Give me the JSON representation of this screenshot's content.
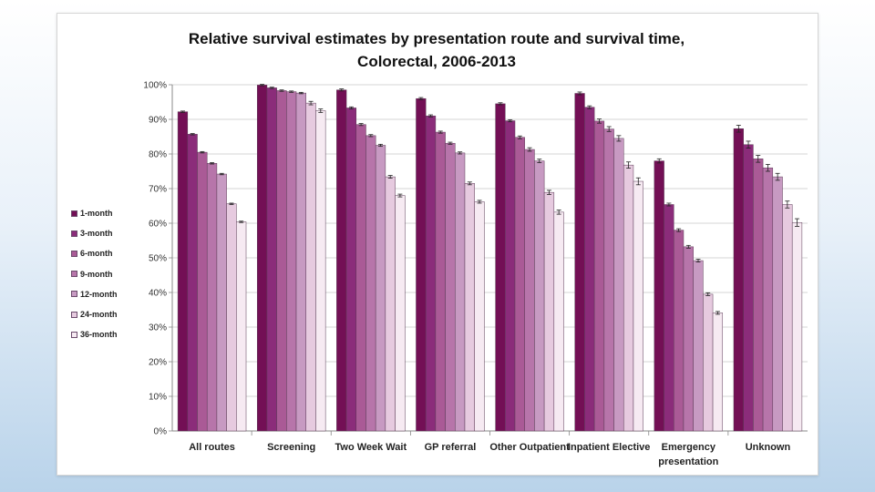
{
  "chart_data": {
    "type": "bar",
    "title": "Relative survival estimates by presentation route and survival time,",
    "subtitle": "Colorectal, 2006-2013",
    "xlabel": "",
    "ylabel": "",
    "ylim": [
      0,
      100
    ],
    "yticks": [
      "0%",
      "10%",
      "20%",
      "30%",
      "40%",
      "50%",
      "60%",
      "70%",
      "80%",
      "90%",
      "100%"
    ],
    "grid": true,
    "error_bars": true,
    "legend_position": "left",
    "categories": [
      "All routes",
      "Screening",
      "Two Week Wait",
      "GP referral",
      "Other Outpatient",
      "Inpatient Elective",
      "Emergency presentation",
      "Unknown"
    ],
    "series": [
      {
        "name": "1-month",
        "color": "#730f55",
        "values": [
          92.2,
          99.9,
          98.5,
          96.0,
          94.5,
          97.5,
          78.0,
          87.3
        ]
      },
      {
        "name": "3-month",
        "color": "#8b2c7a",
        "values": [
          85.7,
          99.1,
          93.3,
          91.0,
          89.6,
          93.5,
          65.4,
          82.7
        ]
      },
      {
        "name": "6-month",
        "color": "#aa5a96",
        "values": [
          80.5,
          98.3,
          88.5,
          86.3,
          84.8,
          89.5,
          58.0,
          78.6
        ]
      },
      {
        "name": "9-month",
        "color": "#b775aa",
        "values": [
          77.3,
          98.0,
          85.3,
          83.1,
          81.3,
          87.2,
          53.2,
          76.0
        ]
      },
      {
        "name": "12-month",
        "color": "#c79ac2",
        "values": [
          74.2,
          97.6,
          82.5,
          80.3,
          78.0,
          84.5,
          49.2,
          73.4
        ]
      },
      {
        "name": "24-month",
        "color": "#e6cadf",
        "values": [
          65.6,
          94.7,
          73.4,
          71.5,
          68.9,
          76.8,
          39.5,
          65.4
        ]
      },
      {
        "name": "36-month",
        "color": "#f6eaf2",
        "values": [
          60.4,
          92.5,
          68.0,
          66.2,
          63.2,
          72.1,
          34.1,
          60.2
        ]
      }
    ],
    "error_margins": [
      [
        0.2,
        0.2,
        0.3,
        0.3,
        0.3,
        0.4,
        0.6,
        1.0
      ],
      [
        0.2,
        0.2,
        0.3,
        0.3,
        0.3,
        0.4,
        0.4,
        1.0
      ],
      [
        0.2,
        0.2,
        0.3,
        0.3,
        0.4,
        0.6,
        0.4,
        1.0
      ],
      [
        0.2,
        0.2,
        0.3,
        0.3,
        0.5,
        0.7,
        0.4,
        1.0
      ],
      [
        0.2,
        0.2,
        0.3,
        0.3,
        0.5,
        0.8,
        0.4,
        1.0
      ],
      [
        0.2,
        0.5,
        0.4,
        0.4,
        0.6,
        0.9,
        0.4,
        1.0
      ],
      [
        0.2,
        0.5,
        0.4,
        0.4,
        0.6,
        1.0,
        0.4,
        1.1
      ]
    ],
    "category_labels": [
      [
        "All routes"
      ],
      [
        "Screening"
      ],
      [
        "Two Week Wait"
      ],
      [
        "GP referral"
      ],
      [
        "Other Outpatient"
      ],
      [
        "Inpatient Elective"
      ],
      [
        "Emergency",
        "presentation"
      ],
      [
        "Unknown"
      ]
    ]
  }
}
